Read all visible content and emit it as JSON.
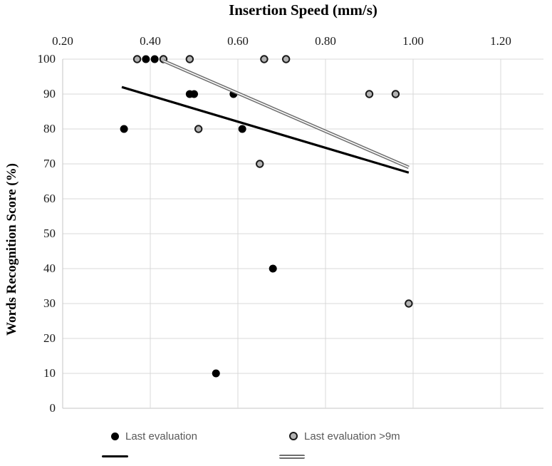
{
  "chart_data": {
    "type": "scatter",
    "title": "Insertion Speed (mm/s)",
    "xlabel": "Insertion Speed (mm/s)",
    "ylabel": "Words Recognition Score (%)",
    "xlim": [
      0.2,
      1.3
    ],
    "ylim": [
      0,
      100
    ],
    "grid": true,
    "x_ticks": [
      {
        "v": 0.2,
        "label": "0.20"
      },
      {
        "v": 0.4,
        "label": "0.40"
      },
      {
        "v": 0.6,
        "label": "0.60"
      },
      {
        "v": 0.8,
        "label": "0.80"
      },
      {
        "v": 1.0,
        "label": "1.00"
      },
      {
        "v": 1.2,
        "label": "1.20"
      }
    ],
    "y_ticks": [
      {
        "v": 100,
        "label": "100"
      },
      {
        "v": 90,
        "label": "90"
      },
      {
        "v": 80,
        "label": "80"
      },
      {
        "v": 70,
        "label": "70"
      },
      {
        "v": 60,
        "label": "60"
      },
      {
        "v": 50,
        "label": "50"
      },
      {
        "v": 40,
        "label": "40"
      },
      {
        "v": 30,
        "label": "30"
      },
      {
        "v": 20,
        "label": "20"
      },
      {
        "v": 10,
        "label": "10"
      },
      {
        "v": 0,
        "label": "0"
      }
    ],
    "series": [
      {
        "name": "Last evaluation",
        "marker": "filled-black-circle",
        "points": [
          [
            0.39,
            100
          ],
          [
            0.41,
            100
          ],
          [
            0.49,
            90
          ],
          [
            0.5,
            90
          ],
          [
            0.59,
            90
          ],
          [
            0.34,
            80
          ],
          [
            0.61,
            80
          ],
          [
            0.68,
            40
          ],
          [
            0.55,
            10
          ]
        ]
      },
      {
        "name": "Last evaluation >9m",
        "marker": "gray-circle-black-ring",
        "points": [
          [
            0.37,
            100
          ],
          [
            0.43,
            100
          ],
          [
            0.49,
            100
          ],
          [
            0.66,
            100
          ],
          [
            0.71,
            100
          ],
          [
            0.9,
            90
          ],
          [
            0.96,
            90
          ],
          [
            0.51,
            80
          ],
          [
            0.65,
            70
          ],
          [
            0.99,
            30
          ]
        ]
      }
    ],
    "trend_lines": [
      {
        "series": "Last evaluation",
        "style": "solid-black",
        "x1": 0.335,
        "y1": 92,
        "x2": 0.99,
        "y2": 67.5
      },
      {
        "series": "Last evaluation >9m",
        "style": "double-gray",
        "x1": 0.43,
        "y1": 99.5,
        "x2": 0.99,
        "y2": 69
      }
    ],
    "legend_position": "bottom"
  },
  "legend": {
    "items": [
      {
        "label": "Last evaluation",
        "marker": "black-dot"
      },
      {
        "label": "Last evaluation >9m",
        "marker": "gray-dot"
      }
    ]
  },
  "colors": {
    "gridline": "#d9d9d9",
    "axis": "#c6c6c6",
    "black_series": "#000000",
    "gray_fill": "#b3b3b3",
    "gray_ring": "#1a1a1a",
    "gray_trend": "#6e6e6e",
    "legend_text": "#595959",
    "tick_text": "#1a1a1a"
  }
}
